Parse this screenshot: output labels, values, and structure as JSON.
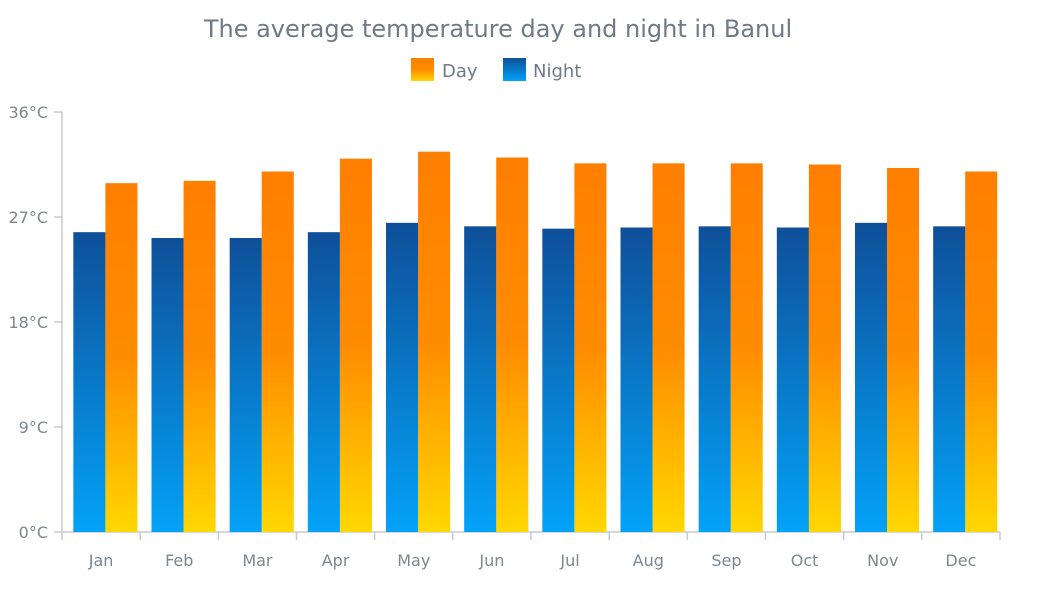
{
  "chart_data": {
    "type": "bar",
    "title": "The average temperature day and night in Banul",
    "categories": [
      "Jan",
      "Feb",
      "Mar",
      "Apr",
      "May",
      "Jun",
      "Jul",
      "Aug",
      "Sep",
      "Oct",
      "Nov",
      "Dec"
    ],
    "series": [
      {
        "name": "Night",
        "values": [
          25.7,
          25.2,
          25.2,
          25.7,
          26.5,
          26.2,
          26.0,
          26.1,
          26.2,
          26.1,
          26.5,
          26.2
        ]
      },
      {
        "name": "Day",
        "values": [
          29.9,
          30.1,
          30.9,
          32.0,
          32.6,
          32.1,
          31.6,
          31.6,
          31.6,
          31.5,
          31.2,
          30.9
        ]
      }
    ],
    "ylim": [
      0,
      36
    ],
    "yticks": [
      "0°C",
      "9°C",
      "18°C",
      "27°C",
      "36°C"
    ],
    "ytick_values": [
      0,
      9,
      18,
      27,
      36
    ],
    "legend_position": "top",
    "grid": false,
    "colors": {
      "day_top": "#ff7f00",
      "day_bottom": "#ffd700",
      "night_top": "#0f4f99",
      "night_bottom": "#03a2f8",
      "axis": "#c5ccd3",
      "text": "#6e7a87"
    }
  }
}
